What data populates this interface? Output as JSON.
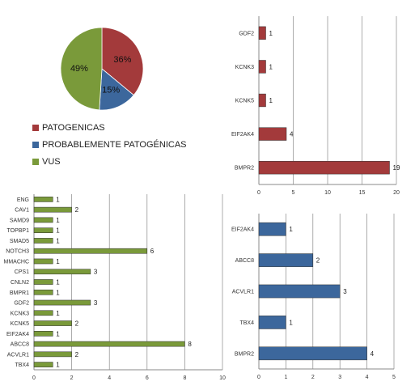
{
  "colors": {
    "red": "#A33A3B",
    "blue": "#3C679C",
    "green": "#7A9A3A"
  },
  "legend": {
    "items": [
      {
        "label": "PATOGENICAS",
        "color": "#A33A3B"
      },
      {
        "label": "PROBABLEMENTE PATOGÉNICAS",
        "color": "#3C679C"
      },
      {
        "label": "VUS",
        "color": "#7A9A3A"
      }
    ]
  },
  "chart_data": [
    {
      "type": "pie",
      "categories": [
        "PATOGENICAS",
        "PROBABLEMENTE PATOGÉNICAS",
        "VUS"
      ],
      "values": [
        36,
        15,
        49
      ],
      "labels": [
        "36%",
        "15%",
        "49%"
      ],
      "legend": "bottom-left"
    },
    {
      "type": "bar",
      "orientation": "horizontal",
      "color": "#A33A3B",
      "categories": [
        "GDF2",
        "KCNK3",
        "KCNK5",
        "EIF2AK4",
        "BMPR2"
      ],
      "values": [
        1,
        1,
        1,
        4,
        19
      ],
      "xlim": [
        0,
        20
      ],
      "xticks": [
        0,
        5,
        10,
        15,
        20
      ],
      "grid": true
    },
    {
      "type": "bar",
      "orientation": "horizontal",
      "color": "#7A9A3A",
      "categories": [
        "ENG",
        "CAV1",
        "SAMD9",
        "TOPBP1",
        "SMAD5",
        "NOTCH3",
        "MMACHC",
        "CPS1",
        "CNLN2",
        "BMPR1",
        "GDF2",
        "KCNK3",
        "KCNK5",
        "EIF2AK4",
        "ABCC8",
        "ACVLR1",
        "TBX4"
      ],
      "values": [
        1,
        2,
        1,
        1,
        1,
        6,
        1,
        3,
        1,
        1,
        3,
        1,
        2,
        1,
        8,
        2,
        1
      ],
      "xlim": [
        0,
        10
      ],
      "xticks": [
        0,
        2,
        4,
        6,
        8,
        10
      ],
      "grid": true
    },
    {
      "type": "bar",
      "orientation": "horizontal",
      "color": "#3C679C",
      "categories": [
        "EIF2AK4",
        "ABCC8",
        "ACVLR1",
        "TBX4",
        "BMPR2"
      ],
      "values": [
        1,
        2,
        3,
        1,
        4
      ],
      "xlim": [
        0,
        5
      ],
      "xticks": [
        0,
        1,
        2,
        3,
        4,
        5
      ],
      "grid": true
    }
  ]
}
